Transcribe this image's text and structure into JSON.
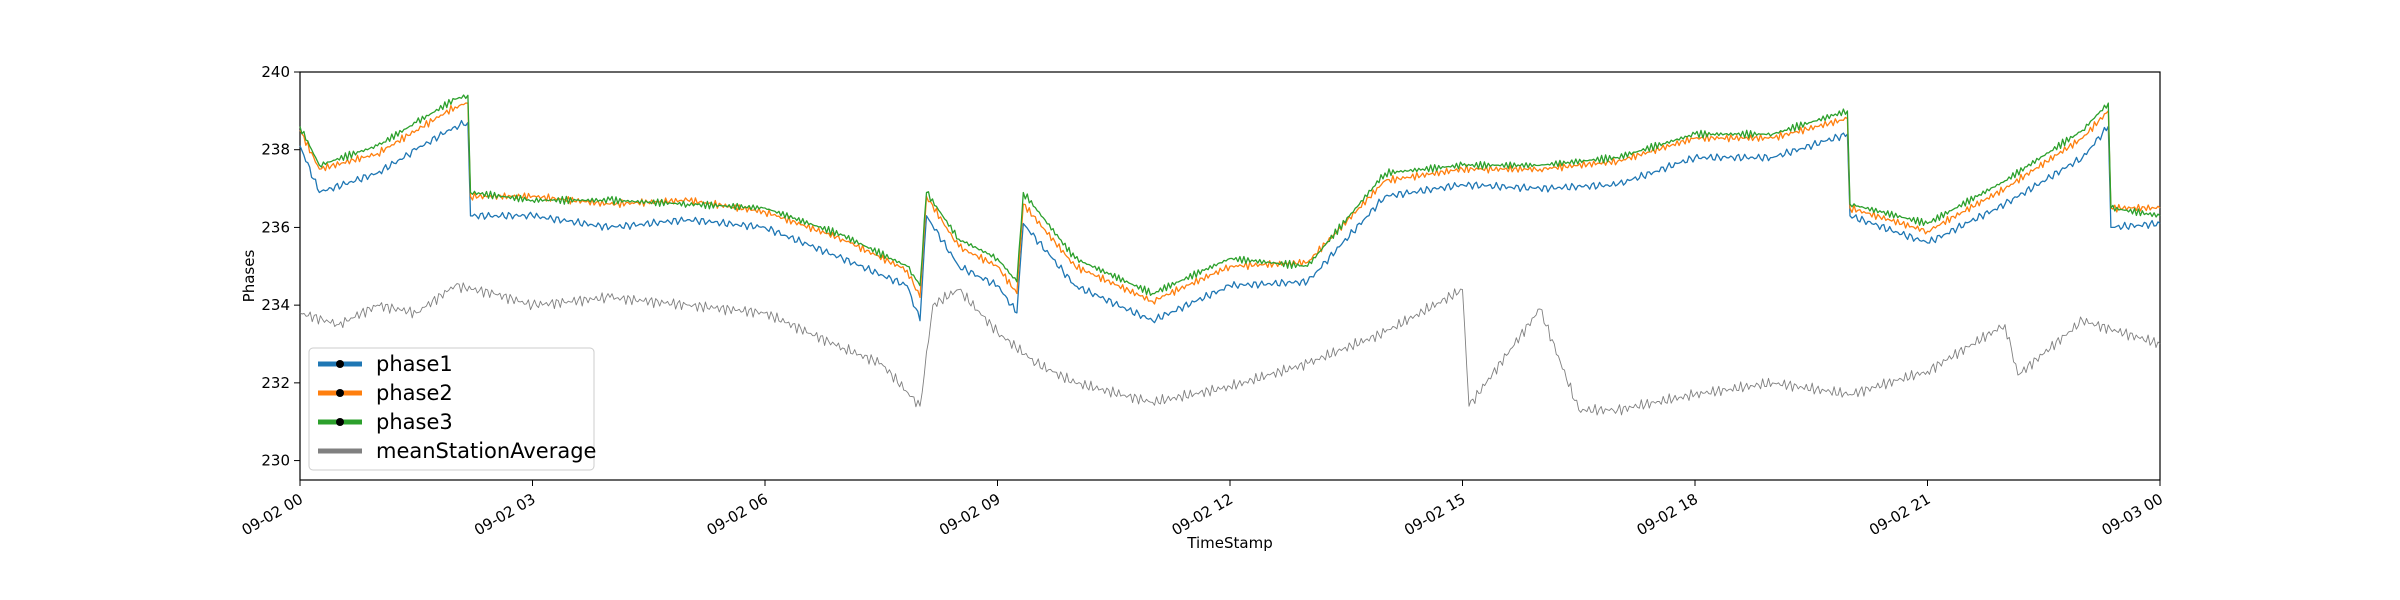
{
  "chart_data": {
    "type": "line",
    "title": "",
    "xlabel": "TimeStamp",
    "ylabel": "Phases",
    "x_axis": {
      "start": "2022-09-02 00:00",
      "end": "2022-09-03 00:00",
      "ticks": [
        {
          "value": "2022-09-02 00:00",
          "label": "09-02 00"
        },
        {
          "value": "2022-09-02 03:00",
          "label": "09-02 03"
        },
        {
          "value": "2022-09-02 06:00",
          "label": "09-02 06"
        },
        {
          "value": "2022-09-02 09:00",
          "label": "09-02 09"
        },
        {
          "value": "2022-09-02 12:00",
          "label": "09-02 12"
        },
        {
          "value": "2022-09-02 15:00",
          "label": "09-02 15"
        },
        {
          "value": "2022-09-02 18:00",
          "label": "09-02 18"
        },
        {
          "value": "2022-09-02 21:00",
          "label": "09-02 21"
        },
        {
          "value": "2022-09-03 00:00",
          "label": "09-03 00"
        }
      ]
    },
    "ylim": [
      229.5,
      240.0
    ],
    "y_ticks": [
      230,
      232,
      234,
      236,
      238,
      240
    ],
    "grid": false,
    "legend_position": "lower-left",
    "series": [
      {
        "name": "phase1",
        "color": "#1f77b4",
        "x": [
          "2022-09-02 00:00",
          "2022-09-02 00:15",
          "2022-09-02 01:00",
          "2022-09-02 01:30",
          "2022-09-02 02:00",
          "2022-09-02 02:10",
          "2022-09-02 02:12",
          "2022-09-02 03:00",
          "2022-09-02 04:00",
          "2022-09-02 05:00",
          "2022-09-02 06:00",
          "2022-09-02 07:00",
          "2022-09-02 07:50",
          "2022-09-02 08:00",
          "2022-09-02 08:05",
          "2022-09-02 08:30",
          "2022-09-02 09:00",
          "2022-09-02 09:15",
          "2022-09-02 09:20",
          "2022-09-02 10:00",
          "2022-09-02 11:00",
          "2022-09-02 12:00",
          "2022-09-02 13:00",
          "2022-09-02 14:00",
          "2022-09-02 15:00",
          "2022-09-02 16:00",
          "2022-09-02 17:00",
          "2022-09-02 18:00",
          "2022-09-02 19:00",
          "2022-09-02 19:58",
          "2022-09-02 20:00",
          "2022-09-02 21:00",
          "2022-09-02 22:00",
          "2022-09-02 23:00",
          "2022-09-02 23:20",
          "2022-09-02 23:22",
          "2022-09-03 00:00"
        ],
        "values": [
          238.1,
          236.9,
          237.4,
          238.0,
          238.6,
          238.7,
          236.3,
          236.3,
          236.0,
          236.2,
          236.0,
          235.2,
          234.5,
          233.6,
          236.3,
          235.0,
          234.5,
          233.8,
          236.1,
          234.5,
          233.6,
          234.5,
          234.6,
          236.8,
          237.1,
          237.0,
          237.1,
          237.8,
          237.8,
          238.4,
          236.3,
          235.6,
          236.6,
          237.8,
          238.6,
          236.0,
          236.1
        ]
      },
      {
        "name": "phase2",
        "color": "#ff7f0e",
        "x": [
          "2022-09-02 00:00",
          "2022-09-02 00:15",
          "2022-09-02 01:00",
          "2022-09-02 01:30",
          "2022-09-02 02:00",
          "2022-09-02 02:10",
          "2022-09-02 02:12",
          "2022-09-02 03:00",
          "2022-09-02 04:00",
          "2022-09-02 05:00",
          "2022-09-02 06:00",
          "2022-09-02 07:00",
          "2022-09-02 07:50",
          "2022-09-02 08:00",
          "2022-09-02 08:05",
          "2022-09-02 08:30",
          "2022-09-02 09:00",
          "2022-09-02 09:15",
          "2022-09-02 09:20",
          "2022-09-02 10:00",
          "2022-09-02 11:00",
          "2022-09-02 12:00",
          "2022-09-02 13:00",
          "2022-09-02 14:00",
          "2022-09-02 15:00",
          "2022-09-02 16:00",
          "2022-09-02 17:00",
          "2022-09-02 18:00",
          "2022-09-02 19:00",
          "2022-09-02 19:58",
          "2022-09-02 20:00",
          "2022-09-02 21:00",
          "2022-09-02 22:00",
          "2022-09-02 23:00",
          "2022-09-02 23:20",
          "2022-09-02 23:22",
          "2022-09-03 00:00"
        ],
        "values": [
          238.5,
          237.5,
          237.9,
          238.5,
          239.1,
          239.2,
          236.8,
          236.8,
          236.6,
          236.7,
          236.4,
          235.7,
          234.9,
          234.2,
          236.8,
          235.5,
          235.0,
          234.3,
          236.6,
          235.0,
          234.1,
          235.0,
          235.1,
          237.2,
          237.5,
          237.5,
          237.7,
          238.3,
          238.3,
          238.8,
          236.5,
          235.9,
          237.0,
          238.3,
          239.0,
          236.5,
          236.5
        ]
      },
      {
        "name": "phase3",
        "color": "#2ca02c",
        "x": [
          "2022-09-02 00:00",
          "2022-09-02 00:15",
          "2022-09-02 01:00",
          "2022-09-02 01:30",
          "2022-09-02 02:00",
          "2022-09-02 02:10",
          "2022-09-02 02:12",
          "2022-09-02 03:00",
          "2022-09-02 04:00",
          "2022-09-02 05:00",
          "2022-09-02 06:00",
          "2022-09-02 07:00",
          "2022-09-02 07:50",
          "2022-09-02 08:00",
          "2022-09-02 08:05",
          "2022-09-02 08:30",
          "2022-09-02 09:00",
          "2022-09-02 09:15",
          "2022-09-02 09:20",
          "2022-09-02 10:00",
          "2022-09-02 11:00",
          "2022-09-02 12:00",
          "2022-09-02 13:00",
          "2022-09-02 14:00",
          "2022-09-02 15:00",
          "2022-09-02 16:00",
          "2022-09-02 17:00",
          "2022-09-02 18:00",
          "2022-09-02 19:00",
          "2022-09-02 19:58",
          "2022-09-02 20:00",
          "2022-09-02 21:00",
          "2022-09-02 22:00",
          "2022-09-02 23:00",
          "2022-09-02 23:20",
          "2022-09-02 23:22",
          "2022-09-03 00:00"
        ],
        "values": [
          238.6,
          237.6,
          238.1,
          238.7,
          239.3,
          239.4,
          236.9,
          236.7,
          236.7,
          236.6,
          236.5,
          235.8,
          235.0,
          234.5,
          236.9,
          235.7,
          235.2,
          234.6,
          236.9,
          235.2,
          234.3,
          235.2,
          235.0,
          237.4,
          237.6,
          237.6,
          237.8,
          238.4,
          238.4,
          239.0,
          236.6,
          236.1,
          237.2,
          238.5,
          239.2,
          236.5,
          236.3
        ]
      },
      {
        "name": "meanStationAverage",
        "color": "#808080",
        "x": [
          "2022-09-02 00:00",
          "2022-09-02 00:30",
          "2022-09-02 01:00",
          "2022-09-02 01:30",
          "2022-09-02 02:00",
          "2022-09-02 02:30",
          "2022-09-02 03:00",
          "2022-09-02 04:00",
          "2022-09-02 05:00",
          "2022-09-02 06:00",
          "2022-09-02 07:00",
          "2022-09-02 07:30",
          "2022-09-02 08:00",
          "2022-09-02 08:10",
          "2022-09-02 08:30",
          "2022-09-02 09:00",
          "2022-09-02 09:30",
          "2022-09-02 10:00",
          "2022-09-02 11:00",
          "2022-09-02 12:00",
          "2022-09-02 13:00",
          "2022-09-02 14:00",
          "2022-09-02 15:00",
          "2022-09-02 15:05",
          "2022-09-02 16:00",
          "2022-09-02 16:30",
          "2022-09-02 17:00",
          "2022-09-02 18:00",
          "2022-09-02 19:00",
          "2022-09-02 20:00",
          "2022-09-02 21:00",
          "2022-09-02 22:00",
          "2022-09-02 22:10",
          "2022-09-02 23:00",
          "2022-09-03 00:00"
        ],
        "values": [
          233.8,
          233.5,
          234.0,
          233.8,
          234.5,
          234.3,
          234.0,
          234.2,
          234.0,
          233.8,
          232.9,
          232.5,
          231.4,
          234.0,
          234.4,
          233.3,
          232.5,
          232.0,
          231.5,
          231.9,
          232.5,
          233.3,
          234.4,
          231.4,
          233.9,
          231.3,
          231.3,
          231.7,
          232.0,
          231.7,
          232.3,
          233.5,
          232.2,
          233.6,
          233.0
        ]
      }
    ]
  }
}
